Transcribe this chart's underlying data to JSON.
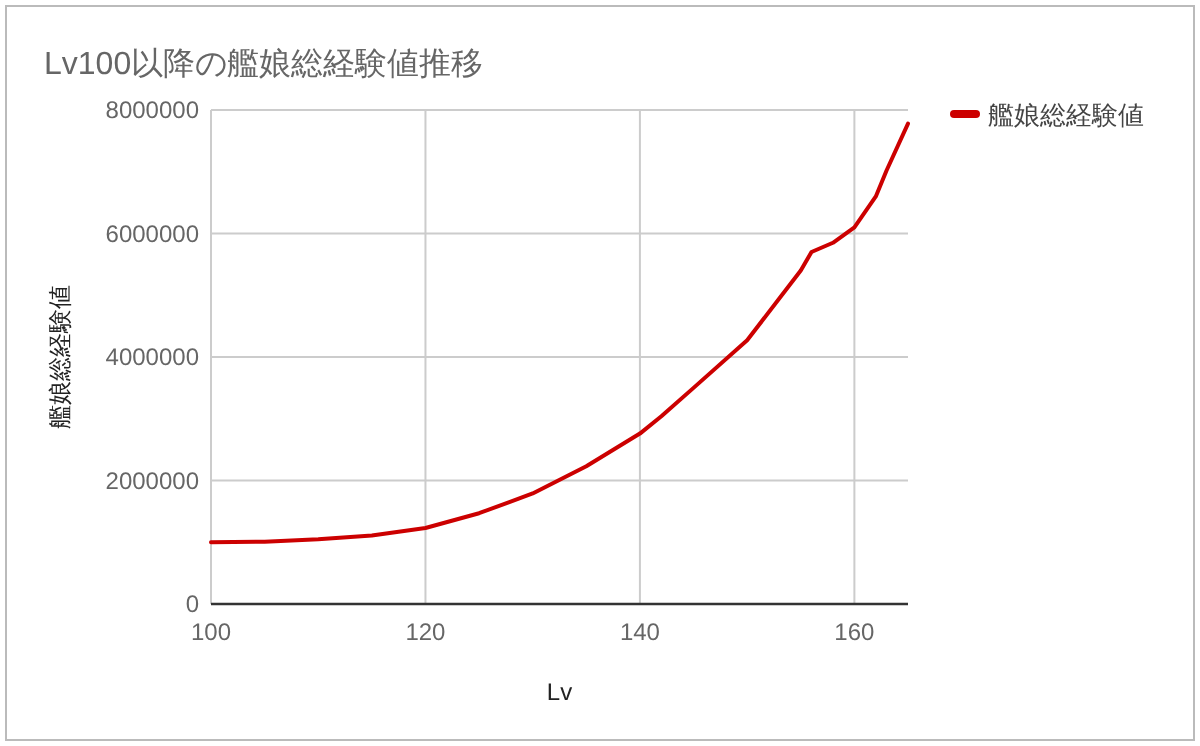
{
  "chart_data": {
    "type": "line",
    "title": "Lv100以降の艦娘総経験値推移",
    "xlabel": "Lv",
    "ylabel": "艦娘総経験値",
    "xlim": [
      100,
      165
    ],
    "xticks": [
      100,
      120,
      140,
      160
    ],
    "ylim": [
      0,
      8000000
    ],
    "yticks": [
      0,
      2000000,
      4000000,
      6000000,
      8000000
    ],
    "grid": true,
    "legend": "right",
    "series": [
      {
        "name": "艦娘総経験値",
        "color": "#cc0000",
        "x": [
          100,
          105,
          110,
          115,
          120,
          125,
          130,
          135,
          140,
          142,
          145,
          150,
          155,
          156,
          158,
          160,
          162,
          163,
          165
        ],
        "values": [
          1000000,
          1010000,
          1050000,
          1110000,
          1230000,
          1470000,
          1790000,
          2230000,
          2760000,
          3040000,
          3500000,
          4270000,
          5400000,
          5700000,
          5850000,
          6100000,
          6600000,
          7020000,
          7780000
        ]
      }
    ]
  }
}
